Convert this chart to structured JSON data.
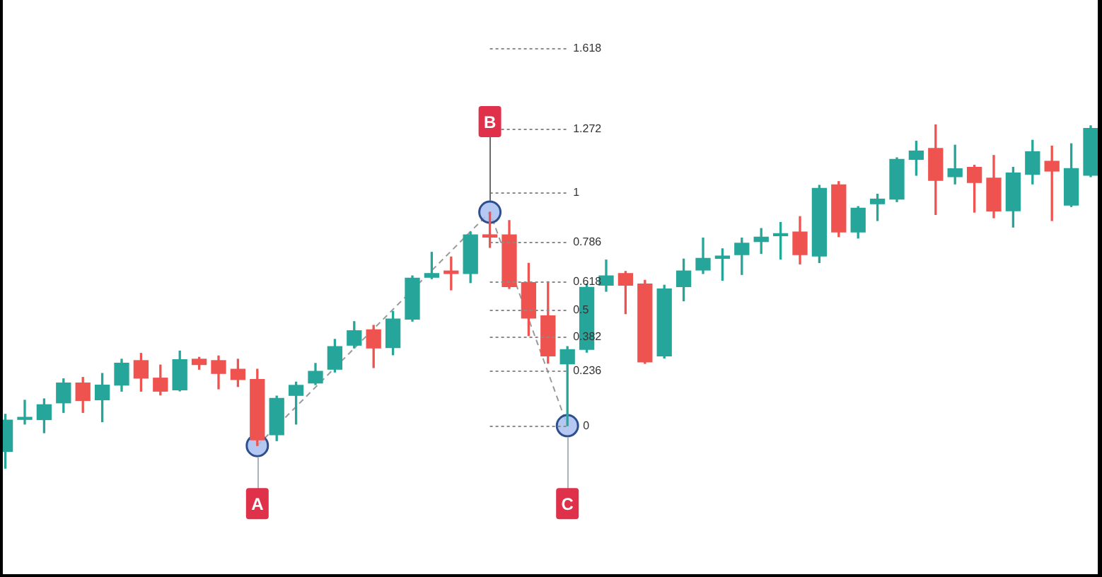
{
  "chart_data": {
    "type": "candlestick",
    "categories": [
      null,
      null,
      null,
      null,
      null,
      null,
      null,
      null,
      null,
      null,
      null,
      null,
      null,
      null,
      null,
      null,
      null,
      null,
      null,
      null,
      null,
      null,
      null,
      null,
      null,
      null,
      null,
      null,
      null,
      null,
      null,
      null,
      null,
      null,
      null,
      null,
      null,
      null,
      null,
      null,
      null,
      null,
      null,
      null,
      null,
      null,
      null,
      null,
      null,
      null,
      null,
      null,
      null,
      null,
      null,
      null,
      null
    ],
    "ohlc": [
      [
        -0.11,
        0.049,
        -0.182,
        0.024
      ],
      [
        0.027,
        0.109,
        0.007,
        0.033
      ],
      [
        0.026,
        0.115,
        -0.03,
        0.09
      ],
      [
        0.098,
        0.201,
        0.057,
        0.183
      ],
      [
        0.183,
        0.207,
        0.057,
        0.108
      ],
      [
        0.111,
        0.224,
        0.017,
        0.174
      ],
      [
        0.174,
        0.285,
        0.148,
        0.268
      ],
      [
        0.279,
        0.31,
        0.148,
        0.204
      ],
      [
        0.204,
        0.26,
        0.132,
        0.148
      ],
      [
        0.154,
        0.32,
        0.149,
        0.283
      ],
      [
        0.285,
        0.293,
        0.242,
        0.262
      ],
      [
        0.279,
        0.299,
        0.158,
        0.224
      ],
      [
        0.242,
        0.285,
        0.168,
        0.198
      ],
      [
        0.198,
        0.242,
        -0.085,
        -0.061
      ],
      [
        -0.039,
        0.127,
        -0.064,
        0.117
      ],
      [
        0.13,
        0.187,
        0.007,
        0.173
      ],
      [
        0.183,
        0.267,
        0.176,
        0.233
      ],
      [
        0.242,
        0.37,
        0.23,
        0.339
      ],
      [
        0.345,
        0.446,
        0.333,
        0.407
      ],
      [
        0.411,
        0.43,
        0.249,
        0.333
      ],
      [
        0.335,
        0.49,
        0.304,
        0.457
      ],
      [
        0.457,
        0.642,
        0.448,
        0.632
      ],
      [
        0.636,
        0.743,
        0.63,
        0.652
      ],
      [
        0.663,
        0.723,
        0.582,
        0.652
      ],
      [
        0.652,
        0.83,
        0.613,
        0.818
      ],
      [
        0.818,
        0.915,
        0.764,
        0.808
      ],
      [
        0.818,
        0.879,
        0.588,
        0.596
      ],
      [
        0.613,
        0.696,
        0.386,
        0.461
      ],
      [
        0.471,
        0.617,
        0.268,
        0.299
      ],
      [
        0.265,
        0.339,
        0,
        0.326
      ],
      [
        0.327,
        0.607,
        0.315,
        0.593
      ],
      [
        0.602,
        0.71,
        0.576,
        0.642
      ],
      [
        0.652,
        0.661,
        0.48,
        0.602
      ],
      [
        0.607,
        0.623,
        0.267,
        0.273
      ],
      [
        0.299,
        0.602,
        0.29,
        0.586
      ],
      [
        0.596,
        0.714,
        0.535,
        0.663
      ],
      [
        0.667,
        0.804,
        0.652,
        0.717
      ],
      [
        0.717,
        0.758,
        0.623,
        0.727
      ],
      [
        0.733,
        0.804,
        0.648,
        0.782
      ],
      [
        0.789,
        0.845,
        0.738,
        0.808
      ],
      [
        0.814,
        0.871,
        0.714,
        0.82
      ],
      [
        0.83,
        0.896,
        0.693,
        0.733
      ],
      [
        0.727,
        1.03,
        0.699,
        1.017
      ],
      [
        1.032,
        1.046,
        0.81,
        0.83
      ],
      [
        0.83,
        0.939,
        0.804,
        0.932
      ],
      [
        0.951,
        0.992,
        0.879,
        0.971
      ],
      [
        0.971,
        1.148,
        0.96,
        1.141
      ],
      [
        1.141,
        1.219,
        1.073,
        1.177
      ],
      [
        1.188,
        1.289,
        0.905,
        1.051
      ],
      [
        1.067,
        1.202,
        1.036,
        1.101
      ],
      [
        1.107,
        1.116,
        0.915,
        1.042
      ],
      [
        1.061,
        1.158,
        0.891,
        0.92
      ],
      [
        0.921,
        1.107,
        0.851,
        1.083
      ],
      [
        1.077,
        1.223,
        1.036,
        1.174
      ],
      [
        1.133,
        1.198,
        0.879,
        1.091
      ],
      [
        0.945,
        1.208,
        0.939,
        1.102
      ],
      [
        1.073,
        1.285,
        1.067,
        1.274
      ]
    ],
    "colors": [
      "#26a69a",
      "#26a69a",
      "#26a69a",
      "#26a69a",
      "#ef5350",
      "#26a69a",
      "#26a69a",
      "#ef5350",
      "#ef5350",
      "#26a69a",
      "#ef5350",
      "#ef5350",
      "#ef5350",
      "#ef5350",
      "#26a69a",
      "#26a69a",
      "#26a69a",
      "#26a69a",
      "#26a69a",
      "#ef5350",
      "#26a69a",
      "#26a69a",
      "#26a69a",
      "#ef5350",
      "#26a69a",
      "#ef5350",
      "#ef5350",
      "#ef5350",
      "#ef5350",
      "#26a69a",
      "#26a69a",
      "#26a69a",
      "#ef5350",
      "#ef5350",
      "#26a69a",
      "#26a69a",
      "#26a69a",
      "#26a69a",
      "#26a69a",
      "#26a69a",
      "#26a69a",
      "#ef5350",
      "#26a69a",
      "#ef5350",
      "#26a69a",
      "#26a69a",
      "#26a69a",
      "#26a69a",
      "#ef5350",
      "#26a69a",
      "#ef5350",
      "#ef5350",
      "#26a69a",
      "#26a69a",
      "#ef5350",
      "#26a69a",
      "#26a69a"
    ],
    "series": [
      {
        "type": "line",
        "color": "#9a9a9a",
        "values": [
          null,
          null,
          null,
          null,
          null,
          null,
          null,
          null,
          null,
          null,
          null,
          null,
          null,
          -0.085,
          null,
          null,
          null,
          null,
          null,
          null,
          null,
          null,
          null,
          null,
          null,
          0.915,
          null,
          null,
          null,
          0,
          null,
          null,
          null,
          null,
          null,
          null,
          null,
          null,
          null,
          null,
          null,
          null,
          null,
          null,
          null,
          null,
          null,
          null,
          null,
          null,
          null,
          null,
          null,
          null,
          null,
          null,
          null
        ]
      }
    ],
    "marker": "circle",
    "line_style": "dashed",
    "ylim": [
      -0.636,
      1.824
    ],
    "tick_labels": false,
    "ref_lines": [
      {
        "axis": "y",
        "value": 1.618,
        "label": "1.618",
        "color": "#8a8a8a",
        "line_style": "dotted"
      },
      {
        "axis": "y",
        "value": 1.272,
        "label": "1.272",
        "color": "#8a8a8a",
        "line_style": "dotted"
      },
      {
        "axis": "y",
        "value": 1,
        "label": "1",
        "color": "#8a8a8a",
        "line_style": "dotted"
      },
      {
        "axis": "y",
        "value": 0.786,
        "label": "0.786",
        "color": "#8a8a8a",
        "line_style": "dotted"
      },
      {
        "axis": "y",
        "value": 0.618,
        "label": "0.618",
        "color": "#8a8a8a",
        "line_style": "dotted"
      },
      {
        "axis": "y",
        "value": 0.5,
        "label": "0.5",
        "color": "#8a8a8a",
        "line_style": "dotted"
      },
      {
        "axis": "y",
        "value": 0.382,
        "label": "0.382",
        "color": "#8a8a8a",
        "line_style": "dotted"
      },
      {
        "axis": "y",
        "value": 0.236,
        "label": "0.236",
        "color": "#8a8a8a",
        "line_style": "dotted"
      },
      {
        "axis": "y",
        "value": 0,
        "label": "0",
        "color": "#8a8a8a",
        "line_style": "dotted"
      }
    ],
    "annotations": [
      "A",
      "B",
      "C"
    ]
  }
}
